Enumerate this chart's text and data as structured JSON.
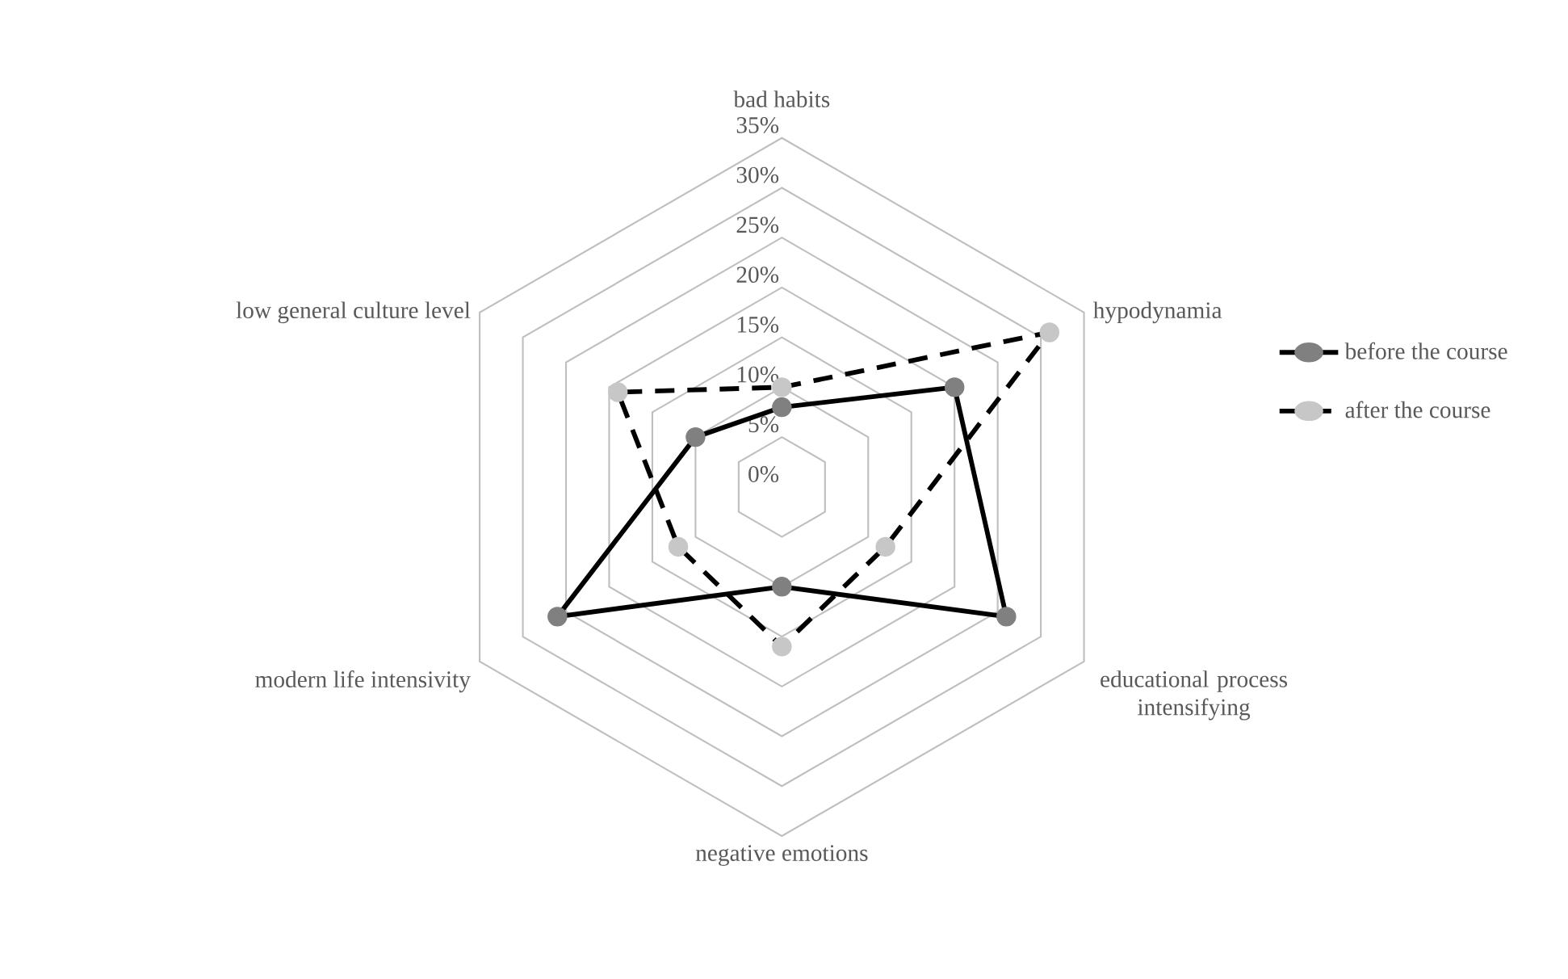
{
  "chart_data": {
    "type": "radar",
    "categories": [
      "bad habits",
      "hypodynamia",
      "educational process intensifying",
      "negative emotions",
      "modern life intensivity",
      "low general culture level"
    ],
    "series": [
      {
        "name": "before the course",
        "color": "#000000",
        "line_style": "solid",
        "values": [
          8,
          20,
          26,
          10,
          26,
          10
        ]
      },
      {
        "name": "after the course",
        "color": "#000000",
        "line_style": "dashed",
        "values": [
          10,
          31,
          12,
          16,
          12,
          19
        ]
      }
    ],
    "ylim": [
      0,
      35
    ],
    "yticks": [
      {
        "value": 0,
        "label": "0%"
      },
      {
        "value": 5,
        "label": "5%"
      },
      {
        "value": 10,
        "label": "10%"
      },
      {
        "value": 15,
        "label": "15%"
      },
      {
        "value": 20,
        "label": "20%"
      },
      {
        "value": 25,
        "label": "25%"
      },
      {
        "value": 30,
        "label": "30%"
      },
      {
        "value": 35,
        "label": "35%"
      }
    ],
    "grid": true,
    "marker": "circle",
    "legend": "right"
  }
}
